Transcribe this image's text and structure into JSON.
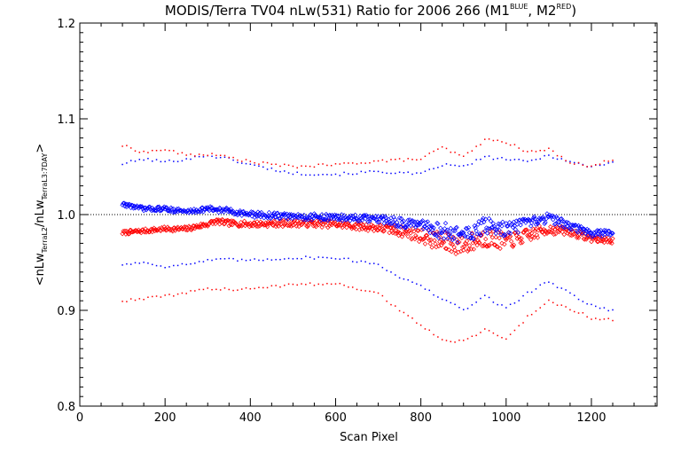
{
  "chart_data": {
    "type": "scatter",
    "title": {
      "main": "MODIS/Terra TV04 nLw(531) Ratio for 2006 266 (M1",
      "sup1": "BLUE",
      "sep": ", M2",
      "sup2": "RED",
      "end": ")"
    },
    "xlabel": "Scan Pixel",
    "ylabel": {
      "open": "<nLw",
      "sub1": "TerraL2",
      "mid": "/nLw",
      "sub2": "TerraL3:7DAY",
      "close": ">"
    },
    "xlim": [
      0,
      1354
    ],
    "ylim": [
      0.8,
      1.2
    ],
    "xticks": [
      0,
      200,
      400,
      600,
      800,
      1000,
      1200
    ],
    "xtick_labels": [
      "0",
      "200",
      "400",
      "600",
      "800",
      "1000",
      "1200"
    ],
    "yticks": [
      0.8,
      0.9,
      1.0,
      1.1,
      1.2
    ],
    "ytick_labels": [
      "0.8",
      "0.9",
      "1.0",
      "1.1",
      "1.2"
    ],
    "reference_line": 1.0,
    "x_range": [
      100,
      1250
    ],
    "colors": {
      "m1": "#0000ff",
      "m2": "#ff0000",
      "axis": "#000000"
    },
    "series": [
      {
        "role": "mean",
        "color": "blue",
        "marker": "diamond",
        "points": [
          [
            100,
            1.011
          ],
          [
            150,
            1.006
          ],
          [
            200,
            1.006
          ],
          [
            250,
            1.003
          ],
          [
            300,
            1.006
          ],
          [
            350,
            1.004
          ],
          [
            400,
            1.0
          ],
          [
            500,
            0.998
          ],
          [
            600,
            0.997
          ],
          [
            700,
            0.995
          ],
          [
            750,
            0.992
          ],
          [
            800,
            0.988
          ],
          [
            850,
            0.983
          ],
          [
            900,
            0.978
          ],
          [
            950,
            0.988
          ],
          [
            1000,
            0.985
          ],
          [
            1050,
            0.99
          ],
          [
            1100,
            0.997
          ],
          [
            1150,
            0.988
          ],
          [
            1200,
            0.98
          ],
          [
            1250,
            0.981
          ]
        ],
        "scatter": [
          [
            100,
            0.002
          ],
          [
            700,
            0.004
          ],
          [
            800,
            0.006
          ],
          [
            850,
            0.009
          ],
          [
            950,
            0.009
          ],
          [
            1050,
            0.006
          ],
          [
            1150,
            0.004
          ],
          [
            1250,
            0.003
          ]
        ]
      },
      {
        "role": "mean",
        "color": "red",
        "marker": "diamond",
        "points": [
          [
            100,
            0.981
          ],
          [
            150,
            0.983
          ],
          [
            200,
            0.985
          ],
          [
            250,
            0.985
          ],
          [
            300,
            0.99
          ],
          [
            320,
            0.993
          ],
          [
            350,
            0.991
          ],
          [
            400,
            0.99
          ],
          [
            500,
            0.991
          ],
          [
            600,
            0.99
          ],
          [
            700,
            0.986
          ],
          [
            750,
            0.983
          ],
          [
            800,
            0.978
          ],
          [
            850,
            0.971
          ],
          [
            900,
            0.968
          ],
          [
            950,
            0.976
          ],
          [
            1000,
            0.972
          ],
          [
            1050,
            0.978
          ],
          [
            1100,
            0.985
          ],
          [
            1150,
            0.982
          ],
          [
            1200,
            0.975
          ],
          [
            1250,
            0.973
          ]
        ],
        "scatter": [
          [
            100,
            0.002
          ],
          [
            700,
            0.004
          ],
          [
            800,
            0.007
          ],
          [
            850,
            0.011
          ],
          [
            950,
            0.01
          ],
          [
            1050,
            0.007
          ],
          [
            1150,
            0.004
          ],
          [
            1250,
            0.003
          ]
        ]
      },
      {
        "role": "upper-band",
        "color": "blue",
        "marker": "dot",
        "points": [
          [
            100,
            1.053
          ],
          [
            150,
            1.058
          ],
          [
            200,
            1.055
          ],
          [
            250,
            1.058
          ],
          [
            300,
            1.062
          ],
          [
            350,
            1.058
          ],
          [
            400,
            1.052
          ],
          [
            500,
            1.043
          ],
          [
            600,
            1.042
          ],
          [
            700,
            1.045
          ],
          [
            800,
            1.042
          ],
          [
            850,
            1.052
          ],
          [
            900,
            1.05
          ],
          [
            950,
            1.06
          ],
          [
            1000,
            1.058
          ],
          [
            1050,
            1.055
          ],
          [
            1100,
            1.062
          ],
          [
            1150,
            1.055
          ],
          [
            1200,
            1.05
          ],
          [
            1250,
            1.055
          ]
        ]
      },
      {
        "role": "upper-band",
        "color": "red",
        "marker": "dot",
        "points": [
          [
            100,
            1.072
          ],
          [
            150,
            1.065
          ],
          [
            200,
            1.068
          ],
          [
            250,
            1.062
          ],
          [
            300,
            1.063
          ],
          [
            350,
            1.06
          ],
          [
            400,
            1.055
          ],
          [
            500,
            1.05
          ],
          [
            600,
            1.052
          ],
          [
            700,
            1.056
          ],
          [
            800,
            1.058
          ],
          [
            850,
            1.07
          ],
          [
            900,
            1.06
          ],
          [
            950,
            1.078
          ],
          [
            1000,
            1.076
          ],
          [
            1050,
            1.065
          ],
          [
            1100,
            1.068
          ],
          [
            1150,
            1.055
          ],
          [
            1200,
            1.05
          ],
          [
            1250,
            1.058
          ]
        ]
      },
      {
        "role": "lower-band",
        "color": "blue",
        "marker": "dot",
        "points": [
          [
            100,
            0.948
          ],
          [
            150,
            0.95
          ],
          [
            200,
            0.946
          ],
          [
            250,
            0.948
          ],
          [
            300,
            0.952
          ],
          [
            350,
            0.953
          ],
          [
            400,
            0.952
          ],
          [
            500,
            0.955
          ],
          [
            600,
            0.955
          ],
          [
            700,
            0.948
          ],
          [
            750,
            0.935
          ],
          [
            800,
            0.925
          ],
          [
            850,
            0.912
          ],
          [
            900,
            0.9
          ],
          [
            950,
            0.915
          ],
          [
            1000,
            0.902
          ],
          [
            1050,
            0.918
          ],
          [
            1100,
            0.93
          ],
          [
            1150,
            0.918
          ],
          [
            1200,
            0.905
          ],
          [
            1250,
            0.9
          ]
        ]
      },
      {
        "role": "lower-band",
        "color": "red",
        "marker": "dot",
        "points": [
          [
            100,
            0.91
          ],
          [
            150,
            0.912
          ],
          [
            200,
            0.915
          ],
          [
            250,
            0.918
          ],
          [
            300,
            0.923
          ],
          [
            350,
            0.922
          ],
          [
            400,
            0.922
          ],
          [
            500,
            0.927
          ],
          [
            600,
            0.928
          ],
          [
            700,
            0.918
          ],
          [
            750,
            0.9
          ],
          [
            800,
            0.885
          ],
          [
            850,
            0.868
          ],
          [
            900,
            0.868
          ],
          [
            950,
            0.88
          ],
          [
            1000,
            0.87
          ],
          [
            1050,
            0.893
          ],
          [
            1100,
            0.91
          ],
          [
            1150,
            0.902
          ],
          [
            1200,
            0.892
          ],
          [
            1250,
            0.89
          ]
        ]
      }
    ]
  }
}
